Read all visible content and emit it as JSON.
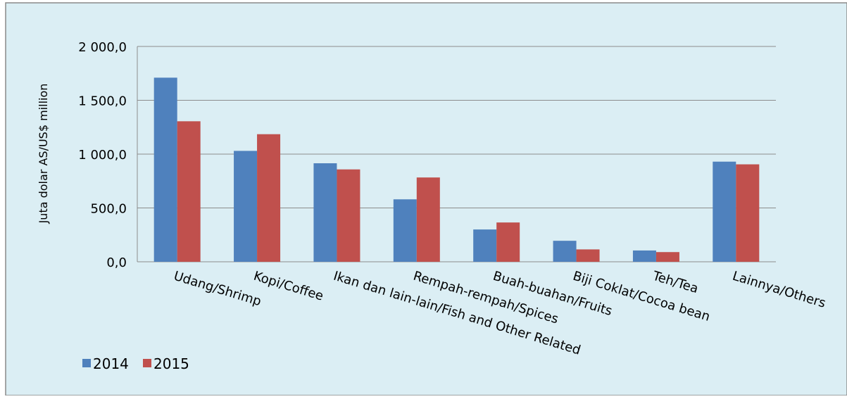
{
  "chart_data": {
    "type": "bar",
    "ylabel": "Juta dolar AS/US$ million",
    "ylim": [
      0,
      2000
    ],
    "yticks": [
      "0,0",
      "500,0",
      "1 000,0",
      "1 500,0",
      "2 000,0"
    ],
    "ytick_values": [
      0,
      500,
      1000,
      1500,
      2000
    ],
    "categories": [
      "Udang/Shrimp",
      "Kopi/Coffee",
      "Ikan dan lain-lain/Fish and Other Related",
      "Rempah-rempah/Spices",
      "Buah-buahan/Fruits",
      "Biji Coklat/Cocoa bean",
      "Teh/Tea",
      "Lainnya/Others"
    ],
    "series": [
      {
        "name": "2014",
        "color": "#4f81bd",
        "values": [
          1710,
          1030,
          915,
          580,
          300,
          195,
          105,
          930
        ]
      },
      {
        "name": "2015",
        "color": "#c0504d",
        "values": [
          1305,
          1185,
          858,
          783,
          365,
          115,
          90,
          905
        ]
      }
    ],
    "grid": true,
    "legend": "bottom-left",
    "background": "#dbeef4"
  }
}
